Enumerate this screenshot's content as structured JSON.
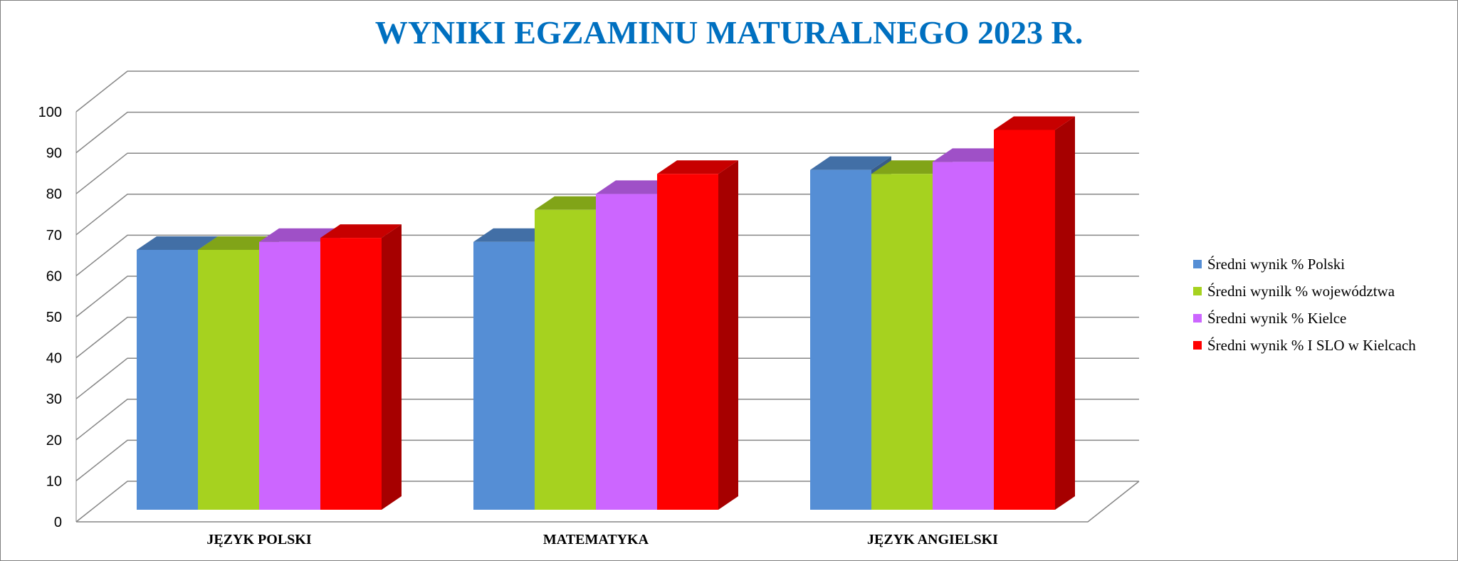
{
  "chart_data": {
    "type": "bar",
    "title": "WYNIKI EGZAMINU MATURALNEGO 2023 R.",
    "categories": [
      "JĘZYK POLSKI",
      "MATEMATYKA",
      "JĘZYK ANGIELSKI"
    ],
    "series": [
      {
        "name": "Średni wynik % Polski",
        "values": [
          65,
          67,
          85
        ],
        "color": "#558ED5"
      },
      {
        "name": "Średni wynilk % województwa",
        "values": [
          65,
          75,
          84
        ],
        "color": "#A6D21F"
      },
      {
        "name": "Średni wynik % Kielce",
        "values": [
          67,
          79,
          87
        ],
        "color": "#CC66FF"
      },
      {
        "name": "Średni wynik % I SLO w Kielcach",
        "values": [
          68,
          84,
          95
        ],
        "color": "#FF0000"
      }
    ],
    "yticks": [
      "0",
      "10",
      "20",
      "30",
      "40",
      "50",
      "60",
      "70",
      "80",
      "90",
      "100"
    ],
    "ylim": [
      0,
      100
    ],
    "grid": true,
    "legend_position": "right",
    "title_color": "#0070C0"
  }
}
